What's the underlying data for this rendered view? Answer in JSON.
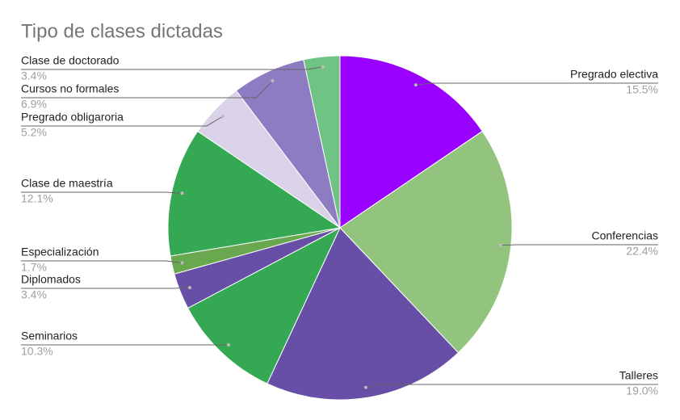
{
  "chart_data": {
    "type": "pie",
    "title": "Tipo de clases dictadas",
    "categories": [
      "Pregrado electiva",
      "Conferencias",
      "Talleres",
      "Seminarios",
      "Diplomados",
      "Especialización",
      "Clase de maestría",
      "Pregrado obligaroria",
      "Cursos no formales",
      "Clase de doctorado"
    ],
    "values": [
      15.5,
      22.4,
      19.0,
      10.3,
      3.4,
      1.7,
      12.1,
      5.2,
      6.9,
      3.4
    ],
    "value_labels": [
      "15.5%",
      "22.4%",
      "19.0%",
      "10.3%",
      "3.4%",
      "1.7%",
      "12.1%",
      "5.2%",
      "6.9%",
      "3.4%"
    ],
    "colors": [
      "#9900ff",
      "#93c47d",
      "#674ea7",
      "#34a853",
      "#674ea7",
      "#6aa84f",
      "#34a853",
      "#d9d2e9",
      "#8e7cc3",
      "#6fc385"
    ]
  }
}
